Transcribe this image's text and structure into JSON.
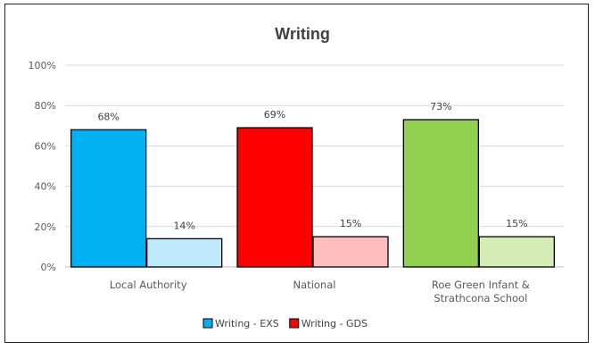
{
  "chart_data": {
    "type": "bar",
    "title": "Writing",
    "categories": [
      [
        "Local Authority"
      ],
      [
        "National"
      ],
      [
        "Roe Green Infant &",
        "Strathcona School"
      ]
    ],
    "series": [
      {
        "name": "Writing - EXS",
        "values": [
          68,
          69,
          73
        ],
        "labels": [
          "68%",
          "69%",
          "73%"
        ],
        "colors": [
          "#00b0f0",
          "#ff0000",
          "#92d050"
        ]
      },
      {
        "name": "Writing - GDS",
        "values": [
          14,
          15,
          15
        ],
        "labels": [
          "14%",
          "15%",
          "15%"
        ],
        "colors": [
          "#bde9fb",
          "#ffbdbd",
          "#d3edb5"
        ]
      }
    ],
    "legend_colors": [
      "#00b0f0",
      "#ff0000"
    ],
    "yticks": [
      "0%",
      "20%",
      "40%",
      "60%",
      "80%",
      "100%"
    ],
    "ylim": [
      0,
      100
    ],
    "grid": true,
    "legend_position": "bottom"
  }
}
